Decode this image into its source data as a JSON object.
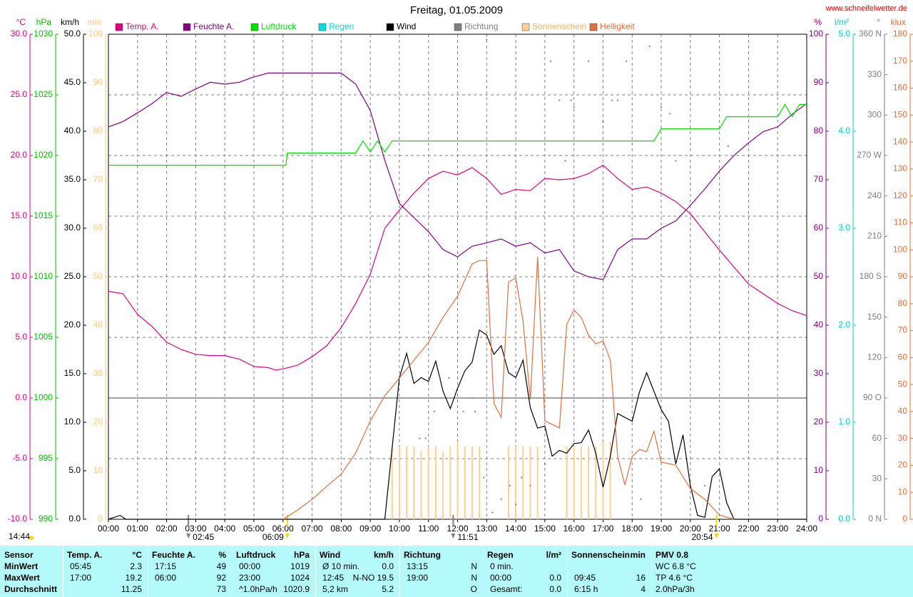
{
  "chart_data": {
    "type": "line",
    "title": "Freitag, 01.05.2009",
    "source": "www.schneifelwetter.de",
    "updated": "14:44",
    "xlim": [
      0,
      24
    ],
    "xticks": [
      {
        "value": 0,
        "label": "00:00"
      },
      {
        "value": 1,
        "label": "01:00"
      },
      {
        "value": 2,
        "label": "02:00"
      },
      {
        "value": 3,
        "label": "03:00"
      },
      {
        "value": 4,
        "label": "04:00"
      },
      {
        "value": 5,
        "label": "05:00"
      },
      {
        "value": 6,
        "label": "06:00"
      },
      {
        "value": 7,
        "label": "07:00"
      },
      {
        "value": 8,
        "label": "08:00"
      },
      {
        "value": 9,
        "label": "09:00"
      },
      {
        "value": 10,
        "label": "10:00"
      },
      {
        "value": 11,
        "label": "11:00"
      },
      {
        "value": 12,
        "label": "12:00"
      },
      {
        "value": 13,
        "label": "13:00"
      },
      {
        "value": 14,
        "label": "14:00"
      },
      {
        "value": 15,
        "label": "15:00"
      },
      {
        "value": 16,
        "label": "16:00"
      },
      {
        "value": 17,
        "label": "17:00"
      },
      {
        "value": 18,
        "label": "18:00"
      },
      {
        "value": 19,
        "label": "19:00"
      },
      {
        "value": 20,
        "label": "20:00"
      },
      {
        "value": 21,
        "label": "21:00"
      },
      {
        "value": 22,
        "label": "22:00"
      },
      {
        "value": 23,
        "label": "23:00"
      },
      {
        "value": 24,
        "label": "24:00"
      }
    ],
    "grid": true,
    "grid_axis": "temp",
    "y_axes": [
      {
        "id": "temp",
        "unit": "°C",
        "side": "left",
        "color": "#e0007f",
        "lim": [
          -10,
          30
        ],
        "ticks": [
          {
            "value": -10,
            "label": "-10.0"
          },
          {
            "value": -5,
            "label": "-5.0"
          },
          {
            "value": 0,
            "label": "0.0"
          },
          {
            "value": 5,
            "label": "5.0"
          },
          {
            "value": 10,
            "label": "10.0"
          },
          {
            "value": 15,
            "label": "15.0"
          },
          {
            "value": 20,
            "label": "20.0"
          },
          {
            "value": 25,
            "label": "25.0"
          },
          {
            "value": 30,
            "label": "30.0"
          }
        ]
      },
      {
        "id": "press",
        "unit": "hPa",
        "side": "left",
        "color": "#00c000",
        "lim": [
          990,
          1030
        ],
        "ticks": [
          990,
          995,
          1000,
          1005,
          1010,
          1015,
          1020,
          1025,
          1030
        ]
      },
      {
        "id": "wind",
        "unit": "km/h",
        "side": "left",
        "color": "#000000",
        "lim": [
          0,
          50
        ],
        "ticks": [
          {
            "value": 0,
            "label": "0.0"
          },
          {
            "value": 5,
            "label": "5.0"
          },
          {
            "value": 10,
            "label": "10.0"
          },
          {
            "value": 15,
            "label": "15.0"
          },
          {
            "value": 20,
            "label": "20.0"
          },
          {
            "value": 25,
            "label": "25.0"
          },
          {
            "value": 30,
            "label": "30.0"
          },
          {
            "value": 35,
            "label": "35.0"
          },
          {
            "value": 40,
            "label": "40.0"
          },
          {
            "value": 45,
            "label": "45.0"
          },
          {
            "value": 50,
            "label": "50.0"
          }
        ]
      },
      {
        "id": "sun",
        "unit": "min",
        "side": "left",
        "color": "#ffc880",
        "lim": [
          0,
          100
        ],
        "ticks": [
          0,
          10,
          20,
          30,
          40,
          50,
          60,
          70,
          80,
          90,
          100
        ]
      },
      {
        "id": "hum",
        "unit": "%",
        "side": "right",
        "color": "#800080",
        "lim": [
          0,
          100
        ],
        "ticks": [
          0,
          10,
          20,
          30,
          40,
          50,
          60,
          70,
          80,
          90,
          100
        ]
      },
      {
        "id": "rain",
        "unit": "l/m²",
        "side": "right",
        "color": "#00d0d0",
        "lim": [
          0,
          5
        ],
        "ticks": [
          {
            "value": 0,
            "label": "0.0"
          },
          {
            "value": 1,
            "label": "1.0"
          },
          {
            "value": 2,
            "label": "2.0"
          },
          {
            "value": 3,
            "label": "3.0"
          },
          {
            "value": 4,
            "label": "4.0"
          },
          {
            "value": 5,
            "label": "5.0"
          }
        ]
      },
      {
        "id": "dir",
        "unit": "°",
        "side": "right",
        "color": "#808080",
        "lim": [
          0,
          360
        ],
        "ticks": [
          {
            "value": 0,
            "label": "0 N"
          },
          30,
          60,
          {
            "value": 90,
            "label": "90 O"
          },
          120,
          150,
          {
            "value": 180,
            "label": "180 S"
          },
          210,
          240,
          {
            "value": 270,
            "label": "270 W"
          },
          300,
          330,
          {
            "value": 360,
            "label": "360 N"
          }
        ]
      },
      {
        "id": "lux",
        "unit": "klux",
        "side": "right",
        "color": "#e07040",
        "lim": [
          0,
          180
        ],
        "ticks": [
          0,
          10,
          20,
          30,
          40,
          50,
          60,
          70,
          80,
          90,
          100,
          110,
          120,
          130,
          140,
          150,
          160,
          170,
          180
        ]
      }
    ],
    "series": [
      {
        "name": "Temp. A.",
        "color": "#e0007f",
        "axis": "temp",
        "kind": "line",
        "x": [
          0,
          0.5,
          1,
          1.5,
          2,
          2.5,
          3,
          3.5,
          4,
          4.5,
          5,
          5.5,
          5.75,
          6,
          6.5,
          7,
          7.5,
          8,
          8.5,
          9,
          9.5,
          10,
          10.5,
          11,
          11.5,
          12,
          12.5,
          13,
          13.5,
          14,
          14.5,
          15,
          15.5,
          16,
          16.5,
          17,
          17.5,
          18,
          18.5,
          19,
          19.5,
          20,
          20.5,
          21,
          21.5,
          22,
          22.5,
          23,
          23.5,
          24
        ],
        "values": [
          8.8,
          8.6,
          6.9,
          5.9,
          4.6,
          4.0,
          3.6,
          3.5,
          3.5,
          3.2,
          2.6,
          2.5,
          2.3,
          2.4,
          2.7,
          3.4,
          4.3,
          5.8,
          7.8,
          10.2,
          14.0,
          15.5,
          16.9,
          18.1,
          18.7,
          18.4,
          19.0,
          18.1,
          16.8,
          17.2,
          17.1,
          18.1,
          18.0,
          18.1,
          18.5,
          19.2,
          18.1,
          17.2,
          17.4,
          16.9,
          16.2,
          15.2,
          13.7,
          12.2,
          10.8,
          9.4,
          8.6,
          7.8,
          7.2,
          6.8
        ]
      },
      {
        "name": "Feuchte A.",
        "color": "#800080",
        "axis": "hum",
        "kind": "line",
        "x": [
          0,
          0.5,
          1,
          1.5,
          2,
          2.5,
          3,
          3.5,
          4,
          4.5,
          5,
          5.5,
          6,
          6.5,
          7,
          7.5,
          8,
          8.5,
          9,
          9.5,
          10,
          10.5,
          11,
          11.5,
          12,
          12.5,
          13,
          13.5,
          14,
          14.5,
          15,
          15.5,
          16,
          16.5,
          17,
          17.5,
          18,
          18.5,
          19,
          19.5,
          20,
          20.5,
          21,
          21.5,
          22,
          22.5,
          23,
          23.5,
          24
        ],
        "values": [
          80.9,
          82,
          83.8,
          85.7,
          88,
          87.2,
          88.7,
          90.1,
          89.7,
          90.1,
          91.2,
          92,
          92,
          92,
          92,
          92,
          92,
          89.7,
          84.3,
          74,
          65.1,
          62.2,
          59.3,
          55.6,
          54.1,
          56.3,
          57,
          57.8,
          56.3,
          57,
          54.9,
          55.6,
          51.2,
          50,
          49.4,
          55.6,
          57.8,
          57.8,
          60,
          61.5,
          64.7,
          68.1,
          71.8,
          75,
          77.6,
          79.9,
          80.9,
          83.5,
          85.7
        ]
      },
      {
        "name": "Luftdruck",
        "color": "#00e000",
        "axis": "press",
        "kind": "line",
        "x": [
          0,
          6.1,
          6.15,
          8.5,
          8.75,
          9,
          9.25,
          9.5,
          9.75,
          18.75,
          19,
          21,
          21.25,
          23,
          23.25,
          23.5,
          23.75,
          24
        ],
        "values": [
          1019.2,
          1019.2,
          1020.2,
          1020.2,
          1021.2,
          1020.3,
          1021.2,
          1020.3,
          1021.2,
          1021.2,
          1022.2,
          1022.2,
          1023.2,
          1023.2,
          1024.2,
          1023.2,
          1024.2,
          1024.2
        ]
      },
      {
        "name": "Regen",
        "color": "#00e0e0",
        "axis": "rain",
        "kind": "line",
        "x": [],
        "values": []
      },
      {
        "name": "Wind",
        "color": "#000000",
        "axis": "wind",
        "kind": "line",
        "x": [
          0,
          0.4,
          0.6,
          9.5,
          10,
          10.25,
          10.5,
          10.75,
          11,
          11.25,
          11.5,
          11.75,
          12,
          12.25,
          12.5,
          12.75,
          13,
          13.25,
          13.5,
          13.75,
          14,
          14.25,
          14.5,
          14.75,
          15,
          15.25,
          15.5,
          15.75,
          16,
          16.25,
          16.5,
          16.75,
          17,
          17.25,
          17.5,
          18,
          18.25,
          18.5,
          19,
          19.25,
          19.5,
          19.75,
          20,
          20.25,
          20.5,
          20.75,
          21,
          21.25,
          21.5,
          24
        ],
        "values": [
          0,
          0.4,
          0,
          0,
          14.6,
          17.1,
          14.0,
          14.6,
          14.2,
          16.3,
          13.2,
          11.4,
          13.5,
          15.3,
          16.2,
          19.5,
          19.0,
          17.0,
          17.9,
          15.1,
          14.6,
          16.4,
          11.5,
          9.4,
          9.6,
          6.5,
          7.1,
          6.8,
          7.8,
          7.9,
          9.2,
          6.8,
          3.3,
          6.5,
          10.9,
          10.1,
          13.1,
          15.1,
          11.3,
          10.1,
          5.7,
          8.7,
          3.5,
          0.4,
          0.2,
          4.4,
          5.2,
          1.7,
          0,
          0
        ]
      },
      {
        "name": "Richtung",
        "color": "#808080",
        "axis": "dir",
        "kind": "points",
        "x": [
          10.7,
          10.9,
          11.2,
          11.4,
          11.7,
          12.2,
          12.5,
          12.6,
          12.9,
          13.0,
          13.2,
          13.5,
          13.8,
          14.0,
          14.2,
          14.5,
          15.0,
          15.2,
          15.5,
          15.7,
          15.9,
          16.0,
          16.5,
          17.0,
          17.3,
          17.5,
          17.8,
          18.3,
          18.6,
          19.0,
          19.3,
          19.5,
          20.5,
          21.3
        ],
        "values": [
          60,
          60,
          80,
          105,
          105,
          80,
          90,
          80,
          31,
          356,
          5,
          15,
          25,
          11,
          31,
          25,
          41,
          340,
          311,
          266,
          311,
          306,
          340,
          295,
          311,
          311,
          340,
          15,
          351,
          306,
          301,
          266,
          25,
          277
        ]
      },
      {
        "name": "Sonnenschein",
        "color": "#ffd090",
        "axis": "sun",
        "kind": "bars",
        "x": [
          9.75,
          10,
          10.25,
          10.5,
          10.75,
          11,
          11.25,
          11.5,
          11.75,
          12,
          12.25,
          12.5,
          12.75,
          13.75,
          14,
          14.25,
          14.5,
          14.75,
          15.75,
          16,
          16.25,
          16.5,
          16.75,
          17,
          17.25
        ],
        "values": [
          15,
          15,
          15,
          15,
          14,
          15,
          15,
          14,
          15,
          16,
          15,
          15,
          15,
          15,
          15,
          15,
          15,
          15,
          15,
          15,
          15,
          15,
          15,
          16,
          16
        ]
      },
      {
        "name": "Helligkeit",
        "color": "#e07040",
        "axis": "lux",
        "kind": "line",
        "x": [
          6,
          6.5,
          7,
          7.5,
          8,
          8.5,
          9,
          9.5,
          10,
          10.5,
          11,
          11.5,
          12,
          12.5,
          12.75,
          13,
          13.25,
          13.5,
          13.75,
          14,
          14.25,
          14.5,
          14.75,
          15,
          15.5,
          15.75,
          16,
          16.25,
          16.5,
          16.75,
          17,
          17.25,
          17.5,
          17.75,
          18,
          18.25,
          18.5,
          18.75,
          19,
          19.5,
          20,
          20.5,
          21,
          21.5
        ],
        "values": [
          0,
          3.4,
          7.4,
          12.2,
          16.7,
          24.6,
          36.5,
          45.8,
          52.4,
          59,
          65.6,
          74.9,
          82.8,
          94.8,
          96,
          96,
          43,
          37.8,
          88.1,
          89.5,
          73.6,
          44.5,
          97.4,
          36.5,
          33.9,
          72.3,
          77.6,
          74.9,
          68.3,
          65.1,
          66.2,
          59,
          23.3,
          12.7,
          23.3,
          25.9,
          25.1,
          32.6,
          21.2,
          20.1,
          11.4,
          7.4,
          1.6,
          0
        ]
      }
    ],
    "events": [
      {
        "value": 2.75,
        "label": "02:45",
        "color": "#808080"
      },
      {
        "value": 6.15,
        "label": "06:09",
        "color": "#ffd800"
      },
      {
        "value": 11.85,
        "label": "11:51",
        "color": "#808080"
      },
      {
        "value": 20.9,
        "label": "20:54",
        "color": "#ffd800"
      }
    ]
  },
  "table": {
    "columns": [
      {
        "header": "Sensor",
        "rows": [
          "MinWert",
          "MaxWert",
          "Durchschnitt"
        ]
      },
      {
        "header": "Temp. A.",
        "unit": "°C",
        "rows": [
          [
            "05:45",
            "2.3"
          ],
          [
            "17:00",
            "19.2"
          ],
          [
            null,
            "11.25"
          ]
        ]
      },
      {
        "header": "Feuchte A.",
        "unit": "%",
        "rows": [
          [
            "17:15",
            "49"
          ],
          [
            "06:00",
            "92"
          ],
          [
            null,
            "73"
          ]
        ]
      },
      {
        "header": "Luftdruck",
        "unit": "hPa",
        "rows": [
          [
            "00:00",
            "1019"
          ],
          [
            "23:00",
            "1024"
          ],
          [
            "^1.0hPa/h",
            "1020.9"
          ]
        ]
      },
      {
        "header": "Wind",
        "unit": "km/h",
        "rows": [
          [
            "Ø 10 min.",
            "0.0"
          ],
          [
            "12:45",
            "N-NO 19.5"
          ],
          [
            "5,2 km",
            "5.2"
          ]
        ]
      },
      {
        "header": "Richtung",
        "rows": [
          [
            "13:15",
            "N"
          ],
          [
            "19:00",
            "N"
          ],
          [
            null,
            "O"
          ]
        ]
      },
      {
        "header": "Regen",
        "unit": "l/m²",
        "rows": [
          [
            "0 min.",
            null
          ],
          [
            "00:00",
            "0.0"
          ],
          [
            "Gesamt:",
            "0.0"
          ]
        ]
      },
      {
        "header": "Sonnenschein",
        "unit": "min",
        "rows": [
          [
            null,
            null
          ],
          [
            "09:45",
            "16"
          ],
          [
            "6:15 h",
            "4"
          ]
        ]
      },
      {
        "header": "PMV 0.8",
        "rows": [
          "WC 6.8 °C",
          "TP 4.6 °C",
          "2.0hPa/3h"
        ]
      }
    ]
  }
}
